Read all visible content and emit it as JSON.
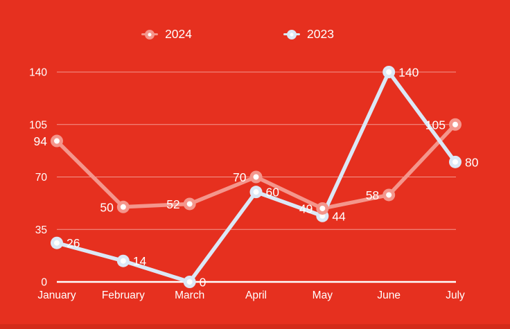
{
  "colors": {
    "background": "#e6301f",
    "bottom_strip": "#d32b1a",
    "text": "#ffffff",
    "gridline": "rgba(255,255,255,0.5)",
    "axis_line": "#ffffff"
  },
  "chart_data": {
    "type": "line",
    "title": "",
    "categories": [
      "January",
      "February",
      "March",
      "April",
      "May",
      "June",
      "July"
    ],
    "series": [
      {
        "name": "2024",
        "color": "#f4968c",
        "values": [
          94,
          50,
          52,
          70,
          49,
          58,
          105
        ],
        "label_side": "left"
      },
      {
        "name": "2023",
        "color": "#dbe8f6",
        "values": [
          26,
          14,
          0,
          60,
          44,
          140,
          80
        ],
        "label_side": "right"
      }
    ],
    "y_ticks": [
      0,
      35,
      70,
      105,
      140
    ],
    "ylim": [
      0,
      140
    ],
    "grid": true,
    "legend_position": "top",
    "marker_style": "circle-with-white-center",
    "data_labels": true
  }
}
